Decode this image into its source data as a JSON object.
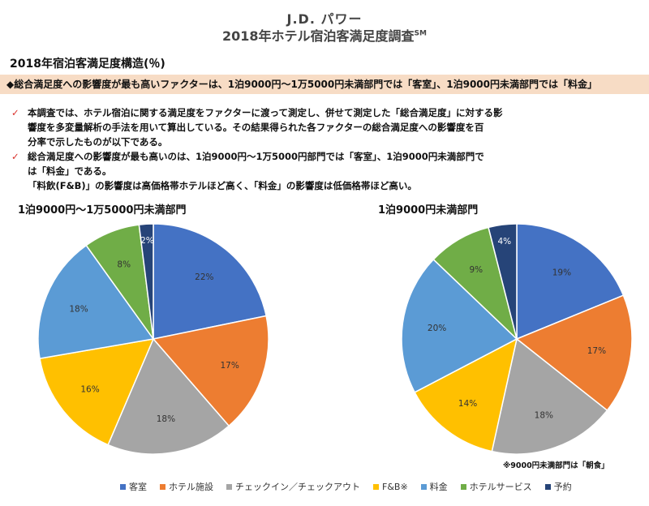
{
  "header": {
    "brand": "J.D. パワー",
    "title": "2018年ホテル宿泊客満足度調査",
    "title_mark": "SM"
  },
  "section_title": "2018年宿泊客満足度構造(％)",
  "banner": "◆総合満足度への影響度が最も高いファクターは、1泊9000円～1万5000円未満部門では「客室」、1泊9000円未満部門では「料金」",
  "bullets": [
    {
      "lines": [
        "本調査では、ホテル宿泊に関する満足度をファクターに渡って測定し、併せて測定した「総合満足度」に対する影",
        "響度を多変量解析の手法を用いて算出している。その結果得られた各ファクターの総合満足度への影響度を百",
        "分率で示したものが以下である。"
      ]
    },
    {
      "lines": [
        "総合満足度への影響度が最も高いのは、1泊9000円～1万5000円部門では「客室」、1泊9000円未満部門で",
        "は「料金」である。"
      ]
    }
  ],
  "note": "「料飲(F&B)」の影響度は高価格帯ホテルほど高く、「料金」の影響度は低価格帯ほど高い。",
  "footnote": "※9000円未満部門は「朝食」",
  "chart_data": [
    {
      "type": "pie",
      "title": "1泊9000円～1万5000円未満部門",
      "categories": [
        "客室",
        "ホテル施設",
        "チェックイン／チェックアウト",
        "F&B※",
        "料金",
        "ホテルサービス",
        "予約"
      ],
      "values": [
        22,
        17,
        18,
        16,
        18,
        8,
        2
      ],
      "labels": [
        "22%",
        "17%",
        "18%",
        "16%",
        "18%",
        "8%",
        "2%"
      ],
      "colors": [
        "#4472c4",
        "#ed7d31",
        "#a5a5a5",
        "#ffc000",
        "#5b9bd5",
        "#70ad47",
        "#264478"
      ],
      "start": "12 o'clock, clockwise"
    },
    {
      "type": "pie",
      "title": "1泊9000円未満部門",
      "categories": [
        "客室",
        "ホテル施設",
        "チェックイン／チェックアウト",
        "F&B※",
        "料金",
        "ホテルサービス",
        "予約"
      ],
      "values": [
        19,
        17,
        18,
        14,
        20,
        9,
        4
      ],
      "labels": [
        "19%",
        "17%",
        "18%",
        "14%",
        "20%",
        "9%",
        "4%"
      ],
      "colors": [
        "#4472c4",
        "#ed7d31",
        "#a5a5a5",
        "#ffc000",
        "#5b9bd5",
        "#70ad47",
        "#264478"
      ],
      "start": "12 o'clock, clockwise"
    }
  ],
  "legend": [
    {
      "label": "客室",
      "color": "#4472c4"
    },
    {
      "label": "ホテル施設",
      "color": "#ed7d31"
    },
    {
      "label": "チェックイン／チェックアウト",
      "color": "#a5a5a5"
    },
    {
      "label": "F&B※",
      "color": "#ffc000"
    },
    {
      "label": "料金",
      "color": "#5b9bd5"
    },
    {
      "label": "ホテルサービス",
      "color": "#70ad47"
    },
    {
      "label": "予約",
      "color": "#264478"
    }
  ]
}
